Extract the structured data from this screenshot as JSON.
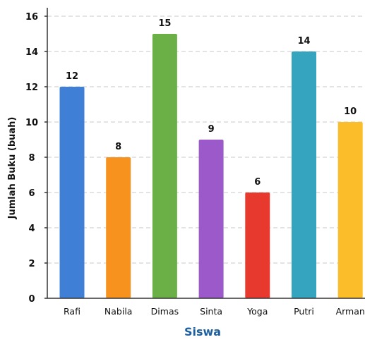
{
  "chart_data": {
    "type": "bar",
    "categories": [
      "Rafi",
      "Nabila",
      "Dimas",
      "Sinta",
      "Yoga",
      "Putri",
      "Arman"
    ],
    "values": [
      12,
      8,
      15,
      9,
      6,
      14,
      10
    ],
    "bar_colors": [
      "#3f7fd6",
      "#f7921e",
      "#6ab046",
      "#9b59c9",
      "#e8392f",
      "#35a5bf",
      "#fbbd2a"
    ],
    "ylabel": "Jumlah Buku (buah)",
    "xlabel": "Siswa",
    "xlabel_color": "#1e5fa0",
    "ylim": [
      0,
      16
    ],
    "yticks": [
      0,
      2,
      4,
      6,
      8,
      10,
      12,
      14,
      16
    ],
    "grid": true
  }
}
